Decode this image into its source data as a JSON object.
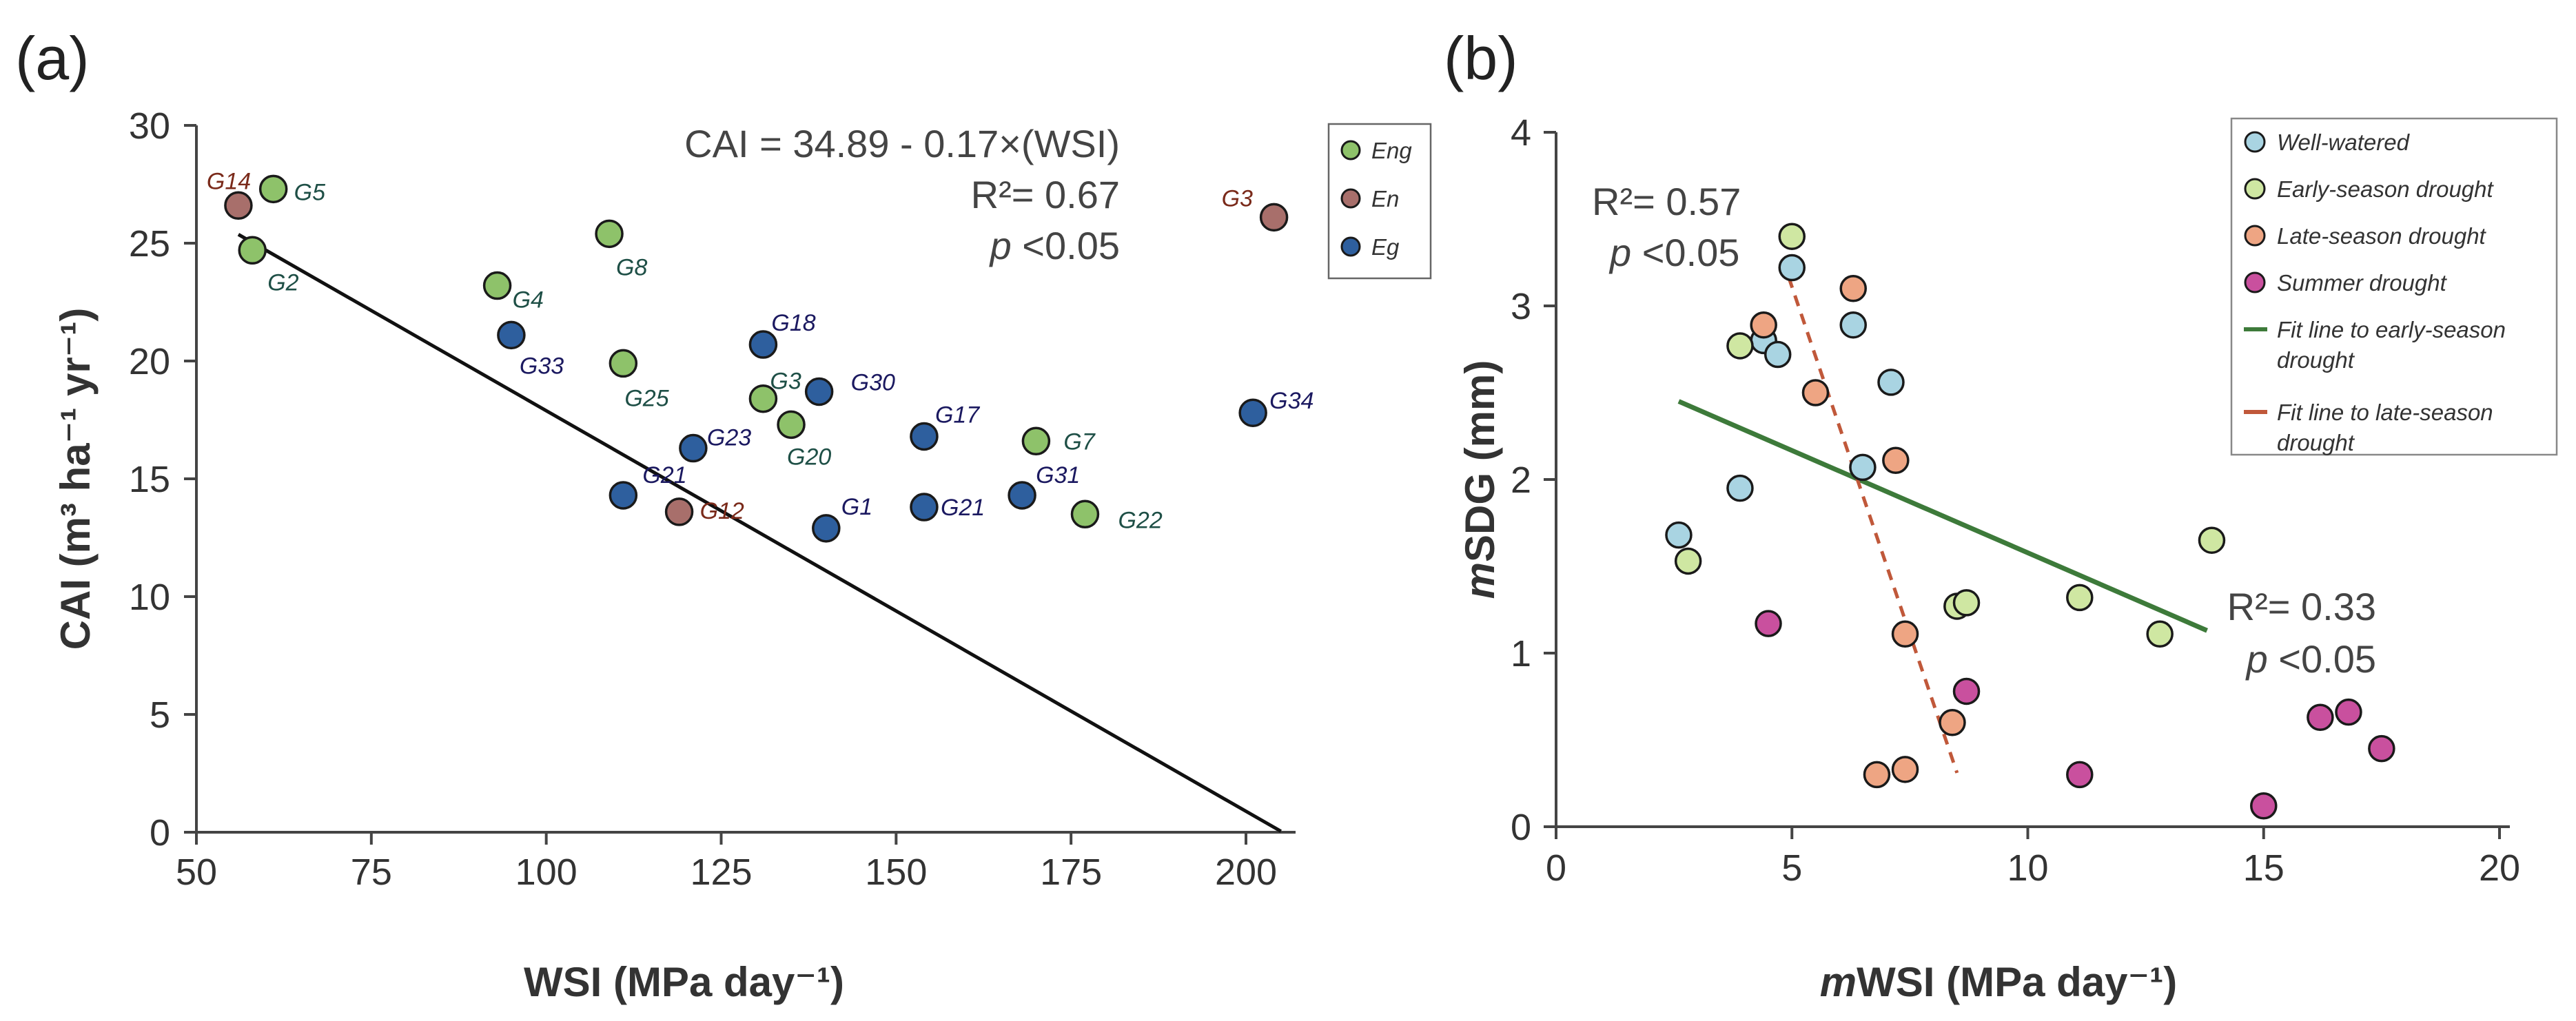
{
  "chart_data": [
    {
      "panel": "(a)",
      "type": "scatter",
      "xlabel": "WSI (MPa day⁻¹)",
      "ylabel": "CAI (m³ ha⁻¹ yr⁻¹)",
      "xlim": [
        50,
        205
      ],
      "ylim": [
        0,
        30
      ],
      "xticks": [
        50,
        75,
        100,
        125,
        150,
        175,
        200
      ],
      "yticks": [
        0,
        5,
        10,
        15,
        20,
        25,
        30
      ],
      "grid": false,
      "legend_position": "top-right",
      "legend": [
        {
          "name": "Eng",
          "color": "#8ec26a"
        },
        {
          "name": "En",
          "color": "#a86f6b"
        },
        {
          "name": "Eg",
          "color": "#2e5f9e"
        }
      ],
      "series": [
        {
          "name": "Eng",
          "color": "#8ec26a",
          "label_color": "#1e4f46",
          "points": [
            {
              "x": 61,
              "y": 27.3,
              "label": "G5"
            },
            {
              "x": 58,
              "y": 24.7,
              "label": "G2"
            },
            {
              "x": 109,
              "y": 25.4,
              "label": "G8"
            },
            {
              "x": 93,
              "y": 23.2,
              "label": "G4"
            },
            {
              "x": 111,
              "y": 19.9,
              "label": "G25"
            },
            {
              "x": 131,
              "y": 18.4,
              "label": "G3"
            },
            {
              "x": 135,
              "y": 17.3,
              "label": "G20"
            },
            {
              "x": 170,
              "y": 16.6,
              "label": "G7"
            },
            {
              "x": 177,
              "y": 13.5,
              "label": "G22"
            }
          ]
        },
        {
          "name": "En",
          "color": "#a86f6b",
          "label_color": "#7a2a1a",
          "points": [
            {
              "x": 56,
              "y": 26.6,
              "label": "G14"
            },
            {
              "x": 204,
              "y": 26.1,
              "label": "G3"
            },
            {
              "x": 119,
              "y": 13.6,
              "label": "G12"
            }
          ]
        },
        {
          "name": "Eg",
          "color": "#2e5f9e",
          "label_color": "#1b1960",
          "points": [
            {
              "x": 95,
              "y": 21.1,
              "label": "G33"
            },
            {
              "x": 131,
              "y": 20.7,
              "label": "G18"
            },
            {
              "x": 139,
              "y": 18.7,
              "label": "G30"
            },
            {
              "x": 121,
              "y": 16.3,
              "label": "G23"
            },
            {
              "x": 111,
              "y": 14.3,
              "label": "G21"
            },
            {
              "x": 154,
              "y": 16.8,
              "label": "G17"
            },
            {
              "x": 140,
              "y": 12.9,
              "label": "G1"
            },
            {
              "x": 154,
              "y": 13.8,
              "label": "G21"
            },
            {
              "x": 168,
              "y": 14.3,
              "label": "G31"
            },
            {
              "x": 201,
              "y": 17.8,
              "label": "G34"
            }
          ]
        }
      ],
      "fit_line": {
        "intercept": 34.89,
        "slope": -0.17,
        "x_range": [
          56,
          205
        ],
        "color": "#111111"
      },
      "annotations": [
        {
          "text": "CAI = 34.89 - 0.17×(WSI)"
        },
        {
          "text": "R²= 0.67"
        },
        {
          "text_italic": "p",
          "text": " <0.05"
        }
      ]
    },
    {
      "panel": "(b)",
      "type": "scatter",
      "xlabel_italic": "m",
      "xlabel": "WSI (MPa day⁻¹)",
      "ylabel_italic": "m",
      "ylabel": "SDG (mm)",
      "xlim": [
        0,
        20.2
      ],
      "ylim": [
        0,
        4
      ],
      "xticks": [
        0,
        5,
        10,
        15,
        20
      ],
      "yticks": [
        0,
        1,
        2,
        3,
        4
      ],
      "grid": false,
      "legend_position": "top-right",
      "series": [
        {
          "name": "Well-watered",
          "color": "#a9d4e2",
          "points": [
            {
              "x": 2.6,
              "y": 1.68
            },
            {
              "x": 3.9,
              "y": 1.95
            },
            {
              "x": 4.4,
              "y": 2.8
            },
            {
              "x": 4.7,
              "y": 2.72
            },
            {
              "x": 5.0,
              "y": 3.22
            },
            {
              "x": 6.3,
              "y": 2.89
            },
            {
              "x": 6.5,
              "y": 2.07
            },
            {
              "x": 7.1,
              "y": 2.56
            }
          ]
        },
        {
          "name": "Early-season drought",
          "color": "#cfe7a2",
          "points": [
            {
              "x": 2.8,
              "y": 1.53
            },
            {
              "x": 3.9,
              "y": 2.77
            },
            {
              "x": 5.0,
              "y": 3.4
            },
            {
              "x": 8.5,
              "y": 1.27
            },
            {
              "x": 8.7,
              "y": 1.29
            },
            {
              "x": 11.1,
              "y": 1.32
            },
            {
              "x": 12.8,
              "y": 1.11
            },
            {
              "x": 13.9,
              "y": 1.65
            }
          ]
        },
        {
          "name": "Late-season drought",
          "color": "#eea583",
          "points": [
            {
              "x": 4.4,
              "y": 2.89
            },
            {
              "x": 5.5,
              "y": 2.5
            },
            {
              "x": 6.3,
              "y": 3.1
            },
            {
              "x": 7.2,
              "y": 2.11
            },
            {
              "x": 7.4,
              "y": 1.11
            },
            {
              "x": 8.4,
              "y": 0.6
            },
            {
              "x": 6.8,
              "y": 0.3
            },
            {
              "x": 7.4,
              "y": 0.33
            }
          ]
        },
        {
          "name": "Summer drought",
          "color": "#c9509e",
          "points": [
            {
              "x": 4.5,
              "y": 1.17
            },
            {
              "x": 8.7,
              "y": 0.78
            },
            {
              "x": 11.1,
              "y": 0.3
            },
            {
              "x": 15.0,
              "y": 0.12
            },
            {
              "x": 16.2,
              "y": 0.63
            },
            {
              "x": 16.8,
              "y": 0.66
            },
            {
              "x": 17.5,
              "y": 0.45
            }
          ]
        }
      ],
      "fit_lines": [
        {
          "name": "Fit line to early-season drought",
          "color": "#3d7a3a",
          "style": "solid",
          "x": [
            2.6,
            13.8
          ],
          "y": [
            2.45,
            1.13
          ]
        },
        {
          "name": "Fit line to late-season drought",
          "color": "#c0583a",
          "style": "dashed",
          "x": [
            4.8,
            8.5
          ],
          "y": [
            3.27,
            0.31
          ]
        }
      ],
      "annotations": [
        {
          "text": "R²= 0.57",
          "color": "#c0583a"
        },
        {
          "text_italic": "p",
          "text": " <0.05",
          "color": "#c0583a"
        },
        {
          "text": "R²= 0.33",
          "color": "#3d7a3a"
        },
        {
          "text_italic": "p",
          "text": " <0.05",
          "color": "#3d7a3a"
        }
      ],
      "legend": [
        {
          "name": "Well-watered",
          "kind": "marker",
          "color": "#a9d4e2"
        },
        {
          "name": "Early-season drought",
          "kind": "marker",
          "color": "#cfe7a2"
        },
        {
          "name": "Late-season drought",
          "kind": "marker",
          "color": "#eea583"
        },
        {
          "name": "Summer drought",
          "kind": "marker",
          "color": "#c9509e"
        },
        {
          "name": "Fit line to early-season",
          "name2": "drought",
          "kind": "line",
          "color": "#3d7a3a"
        },
        {
          "name": "Fit line to late-season",
          "name2": "drought",
          "kind": "line",
          "color": "#c0583a"
        }
      ]
    }
  ]
}
